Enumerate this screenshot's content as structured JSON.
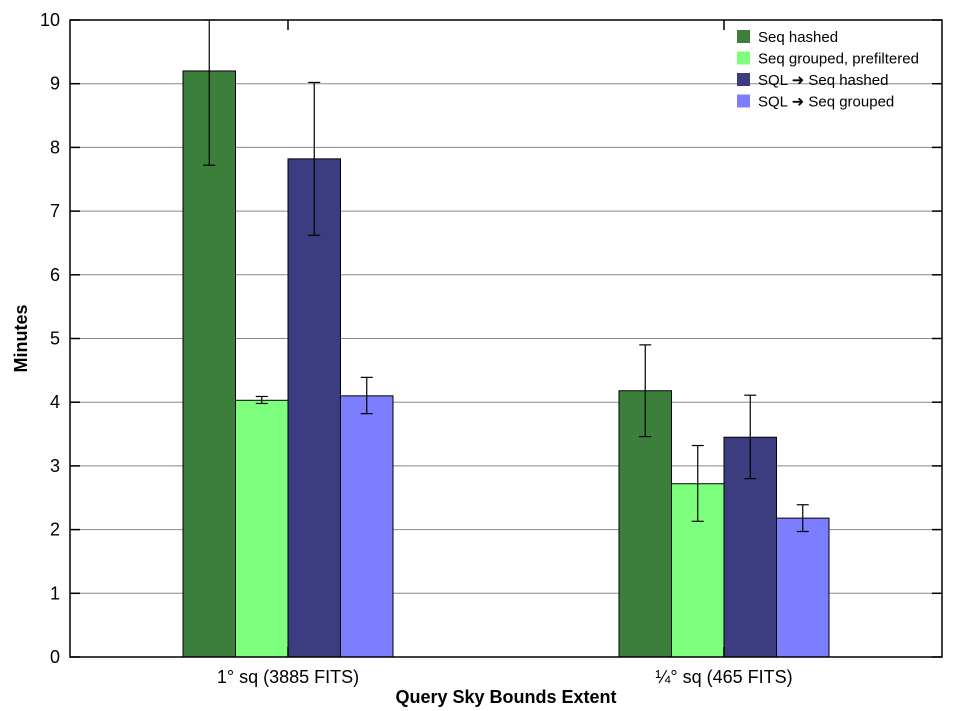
{
  "chart_data": {
    "type": "bar",
    "title": "",
    "xlabel": "Query Sky Bounds Extent",
    "ylabel": "Minutes",
    "ylim": [
      0,
      10
    ],
    "yticks": [
      0,
      1,
      2,
      3,
      4,
      5,
      6,
      7,
      8,
      9,
      10
    ],
    "ytick_labels": [
      "0",
      "1",
      "2",
      "3",
      "4",
      "5",
      "6",
      "7",
      "8",
      "9",
      "10"
    ],
    "grid": true,
    "legend_position": "top-right",
    "categories": [
      "1° sq (3885 FITS)",
      "¼° sq (465 FITS)"
    ],
    "series": [
      {
        "name": "Seq hashed",
        "color": "#3b7f3b",
        "values": [
          9.2,
          4.18
        ],
        "err_low": [
          7.72,
          3.46
        ],
        "err_high": [
          10.0,
          4.9
        ]
      },
      {
        "name": "Seq grouped, prefiltered",
        "color": "#7dff7d",
        "values": [
          4.03,
          2.72
        ],
        "err_low": [
          3.98,
          2.13
        ],
        "err_high": [
          4.09,
          3.32
        ]
      },
      {
        "name": "SQL ➜ Seq hashed",
        "color": "#3c3c80",
        "values": [
          7.82,
          3.45
        ],
        "err_low": [
          6.62,
          2.8
        ],
        "err_high": [
          9.02,
          4.11
        ]
      },
      {
        "name": "SQL ➜ Seq grouped",
        "color": "#7d7dff",
        "values": [
          4.1,
          2.18
        ],
        "err_low": [
          3.82,
          1.97
        ],
        "err_high": [
          4.39,
          2.39
        ]
      }
    ]
  }
}
